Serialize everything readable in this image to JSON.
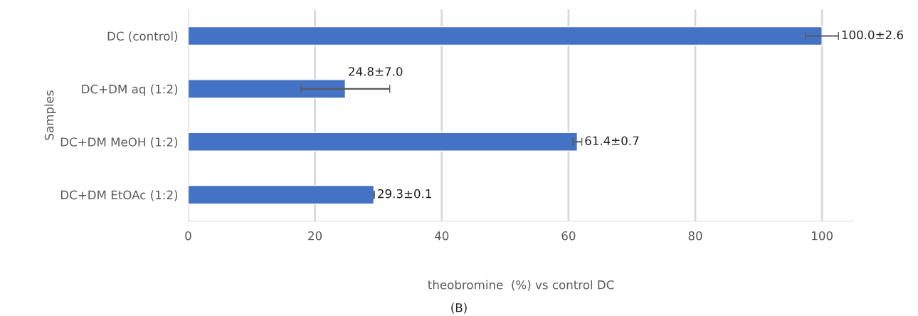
{
  "chart_data": {
    "type": "bar",
    "orientation": "horizontal",
    "categories": [
      "DC (control)",
      "DC+DM aq (1:2)",
      "DC+DM MeOH (1:2)",
      "DC+DM EtOAc (1:2)"
    ],
    "values": [
      100.0,
      24.8,
      61.4,
      29.3
    ],
    "errors": [
      2.6,
      7.0,
      0.7,
      0.1
    ],
    "value_labels": [
      "100.0±2.6",
      "24.8±7.0",
      "61.4±0.7",
      "29.3±0.1"
    ],
    "color": "#4472c4",
    "xlim": [
      0,
      105
    ],
    "xticks": [
      0,
      20,
      40,
      60,
      80,
      100
    ],
    "xlabel": "theobromine  (%) vs control DC",
    "ylabel": "Samples",
    "annotations": [
      "(B)"
    ],
    "grid": "x",
    "legend": false
  }
}
